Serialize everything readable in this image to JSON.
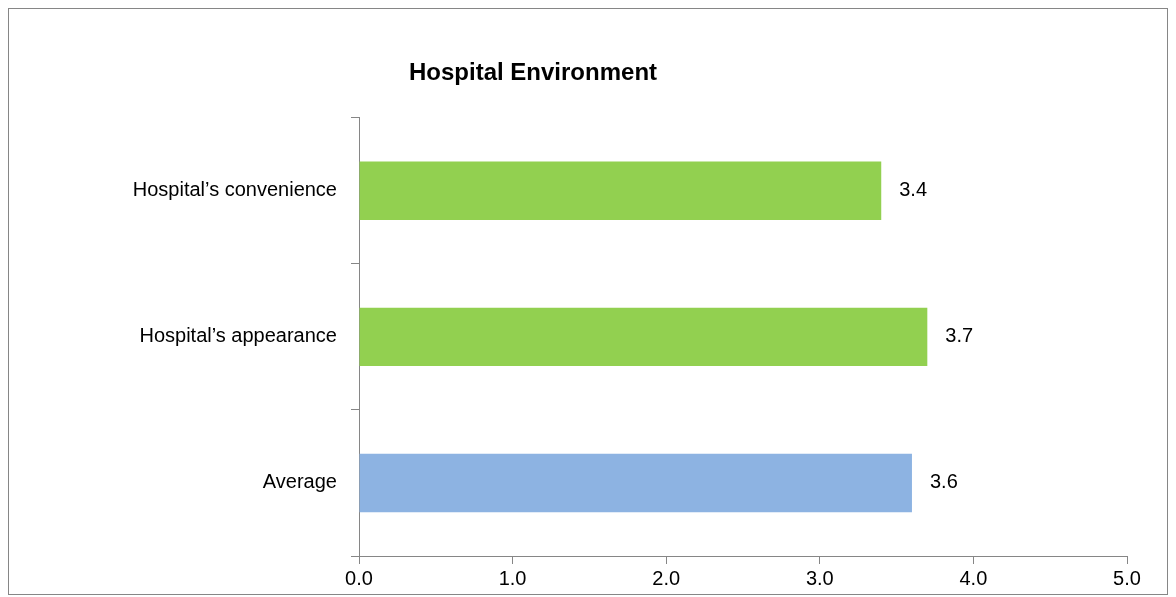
{
  "chart_data": {
    "type": "bar",
    "orientation": "horizontal",
    "title": "Hospital Environment",
    "categories": [
      "Hospital’s convenience",
      "Hospital’s appearance",
      "Average"
    ],
    "values": [
      3.4,
      3.7,
      3.6
    ],
    "colors": [
      "#92d050",
      "#92d050",
      "#8db3e2"
    ],
    "xlim": [
      0,
      5
    ],
    "xticks": [
      {
        "value": 0,
        "label": "0.0"
      },
      {
        "value": 1,
        "label": "1.0"
      },
      {
        "value": 2,
        "label": "2.0"
      },
      {
        "value": 3,
        "label": "3.0"
      },
      {
        "value": 4,
        "label": "4.0"
      },
      {
        "value": 5,
        "label": "5.0"
      }
    ],
    "data_labels": true,
    "grid": false,
    "legend": false
  }
}
